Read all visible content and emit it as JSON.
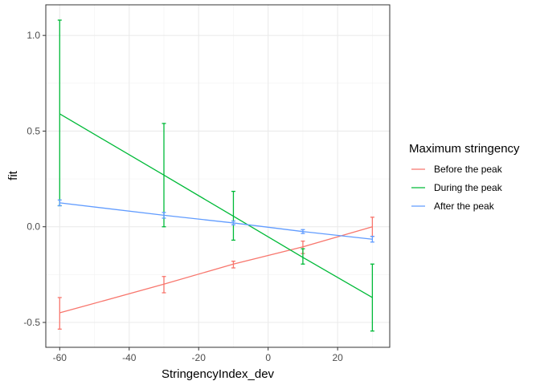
{
  "chart_data": {
    "type": "line",
    "xlabel": "StringencyIndex_dev",
    "ylabel": "fit",
    "xlim": [
      -64,
      35
    ],
    "ylim": [
      -0.63,
      1.16
    ],
    "x_ticks": [
      -60,
      -40,
      -20,
      0,
      20
    ],
    "y_ticks": [
      -0.5,
      0.0,
      0.5,
      1.0
    ],
    "x_tick_labels": [
      "-60",
      "-40",
      "-20",
      "0",
      "20"
    ],
    "y_tick_labels": [
      "-0.5",
      "0.0",
      "0.5",
      "1.0"
    ],
    "grid": true,
    "legend": {
      "title": "Maximum stringency",
      "position": "right"
    },
    "series": [
      {
        "name": "Before the peak",
        "color": "#F8766D",
        "x": [
          -60,
          -30,
          -10,
          10,
          30
        ],
        "y": [
          -0.45,
          -0.3,
          -0.195,
          -0.105,
          0.0
        ],
        "err_low": [
          -0.535,
          -0.345,
          -0.215,
          -0.14,
          -0.05
        ],
        "err_high": [
          -0.37,
          -0.26,
          -0.18,
          -0.075,
          0.05
        ]
      },
      {
        "name": "During the peak",
        "color": "#00BA38",
        "x": [
          -60,
          -30,
          -10,
          10,
          30
        ],
        "y": [
          0.59,
          0.27,
          0.055,
          -0.16,
          -0.37
        ],
        "err_low": [
          0.11,
          0.0,
          -0.07,
          -0.195,
          -0.545
        ],
        "err_high": [
          1.08,
          0.54,
          0.185,
          -0.115,
          -0.195
        ]
      },
      {
        "name": "After the peak",
        "color": "#619CFF",
        "x": [
          -60,
          -30,
          -10,
          10,
          30
        ],
        "y": [
          0.125,
          0.06,
          0.02,
          -0.025,
          -0.065
        ],
        "err_low": [
          0.11,
          0.045,
          0.01,
          -0.035,
          -0.08
        ],
        "err_high": [
          0.14,
          0.075,
          0.03,
          -0.015,
          -0.05
        ]
      }
    ]
  }
}
